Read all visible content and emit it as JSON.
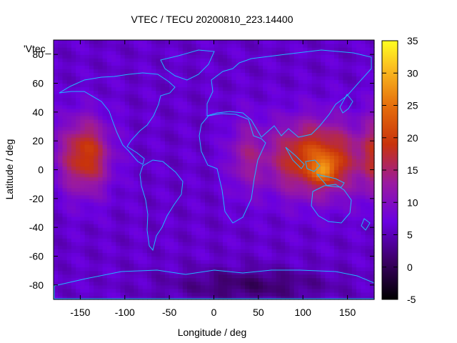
{
  "chart_data": {
    "type": "heatmap",
    "title": "VTEC / TECU 20200810_223.14400",
    "xlabel": "Longitude / deg",
    "ylabel": "Latitude / deg",
    "key_label": "'Vtec_",
    "xlim": [
      -180,
      180
    ],
    "ylim": [
      -90,
      90
    ],
    "x_ticks": [
      -150,
      -100,
      -50,
      0,
      50,
      100,
      150
    ],
    "y_ticks": [
      -80,
      -60,
      -40,
      -20,
      0,
      20,
      40,
      60,
      80
    ],
    "colorbar": {
      "range": [
        -5,
        35
      ],
      "ticks": [
        -5,
        0,
        5,
        10,
        15,
        20,
        25,
        30,
        35
      ],
      "palette": "black-purple-red-orange-yellow"
    },
    "grid": false,
    "overlay": "continent coastlines",
    "grid_values": {
      "lon_step": 5,
      "lat_step": 2.5,
      "background_tecu": 6,
      "features": [
        {
          "name": "pacific-crest",
          "lon": -145,
          "lat": 10,
          "peak_tecu": 20
        },
        {
          "name": "asia-australia-crest",
          "lon": 115,
          "lat": 8,
          "peak_tecu": 22
        },
        {
          "name": "asia-max",
          "lon": 125,
          "lat": 0,
          "peak_tecu": 31
        },
        {
          "name": "polar-low-south",
          "lon": 40,
          "lat": -80,
          "peak_tecu": 1
        }
      ]
    }
  }
}
